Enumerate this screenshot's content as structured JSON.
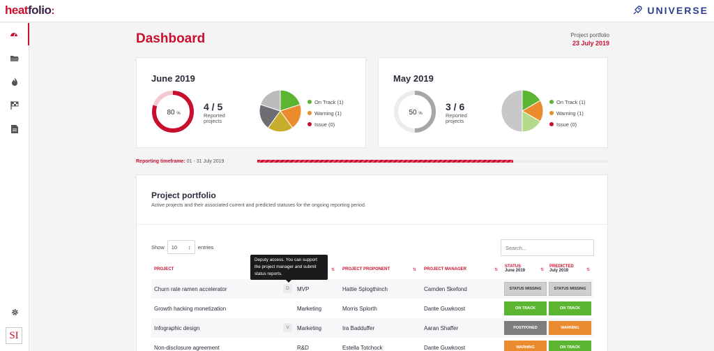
{
  "app": {
    "logo_heat": "heat",
    "logo_folio": "folio",
    "logo_mark": ":",
    "brand": "UNIVERSE"
  },
  "sidebar": {
    "items": [
      {
        "icon": "dashboard-icon",
        "active": true
      },
      {
        "icon": "folder-icon",
        "active": false
      },
      {
        "icon": "flame-icon",
        "active": false
      },
      {
        "icon": "flag-icon",
        "active": false
      },
      {
        "icon": "document-icon",
        "active": false
      }
    ],
    "settings_icon": "gear-icon",
    "badge": "SI"
  },
  "header": {
    "title": "Dashboard",
    "portfolio_label": "Project portfolio",
    "portfolio_date": "23 July 2019"
  },
  "cards": [
    {
      "title": "June 2019",
      "percent": "80",
      "percent_unit": "%",
      "progress_fraction": 0.8,
      "ratio": "4 / 5",
      "reported": "Reported projects",
      "ring_color": "#c8102e",
      "ring_track": "#f2c9cf",
      "pie": [
        {
          "color": "#5cb531",
          "value": 1
        },
        {
          "color": "#ea8b2d",
          "value": 1
        },
        {
          "color": "#c6ad2e",
          "value": 1
        },
        {
          "color": "#6e6e72",
          "value": 1
        },
        {
          "color": "#bcbcbf",
          "value": 1
        }
      ],
      "legend": [
        {
          "label": "On Track (1)",
          "color": "#5cb531"
        },
        {
          "label": "Warning (1)",
          "color": "#ea8b2d"
        },
        {
          "label": "Issue (0)",
          "color": "#c8102e"
        }
      ]
    },
    {
      "title": "May 2019",
      "percent": "50",
      "percent_unit": "%",
      "progress_fraction": 0.5,
      "ratio": "3 / 6",
      "reported": "Reported projects",
      "ring_color": "#a6a6a9",
      "ring_track": "#ececee",
      "pie": [
        {
          "color": "#5cb531",
          "value": 1
        },
        {
          "color": "#ea8b2d",
          "value": 1
        },
        {
          "color": "#b5d98a",
          "value": 1
        },
        {
          "color": "#c8c8cb",
          "value": 3
        }
      ],
      "legend": [
        {
          "label": "On Track (1)",
          "color": "#5cb531"
        },
        {
          "label": "Warning (1)",
          "color": "#ea8b2d"
        },
        {
          "label": "Issue (0)",
          "color": "#c8102e"
        }
      ]
    }
  ],
  "timeframe": {
    "label": "Reporting timeframe:",
    "value": " 01 - 31 July 2019",
    "progress_fraction": 0.73
  },
  "portfolio": {
    "title": "Project portfolio",
    "subtitle": "Active projects and their associated current and predicted statuses for the ongoing reporting period.",
    "show_label": "Show",
    "entries_value": "10",
    "entries_label": "entries",
    "search_placeholder": "Search...",
    "columns": {
      "project": "PROJECT",
      "proponent": "PROJECT PROPONENT",
      "manager": "PROJECT MANAGER",
      "status": "STATUS",
      "status_sub": "June 2019",
      "predicted": "PREDICTED",
      "predicted_sub": "July 2019"
    },
    "tooltip": "Deputy access. You can support the project manager and submit status reports.",
    "rows": [
      {
        "project": "Churn rate ramen accelerator",
        "tag": "D",
        "unit": "MVP",
        "proponent": "Hattie Splogthinch",
        "manager": "Camden Skefond",
        "status": "STATUS MISSING",
        "status_kind": "missing",
        "predicted": "STATUS MISSING",
        "predicted_kind": "missing"
      },
      {
        "project": "Growth hacking monetization",
        "tag": "",
        "unit": "Marketing",
        "proponent": "Morris Splorth",
        "manager": "Dante Guwkoost",
        "status": "ON TRACK",
        "status_kind": "ontrack",
        "predicted": "ON TRACK",
        "predicted_kind": "ontrack"
      },
      {
        "project": "Infographic design",
        "tag": "V",
        "unit": "Marketing",
        "proponent": "Ira Badduffer",
        "manager": "Aaran Shaffer",
        "status": "POSTPONED",
        "status_kind": "postponed",
        "predicted": "WARNING",
        "predicted_kind": "warning"
      },
      {
        "project": "Non-disclosure agreement",
        "tag": "",
        "unit": "R&D",
        "proponent": "Estella Totchock",
        "manager": "Dante Guwkoost",
        "status": "WARNING",
        "status_kind": "warning",
        "predicted": "ON TRACK",
        "predicted_kind": "ontrack"
      }
    ]
  }
}
